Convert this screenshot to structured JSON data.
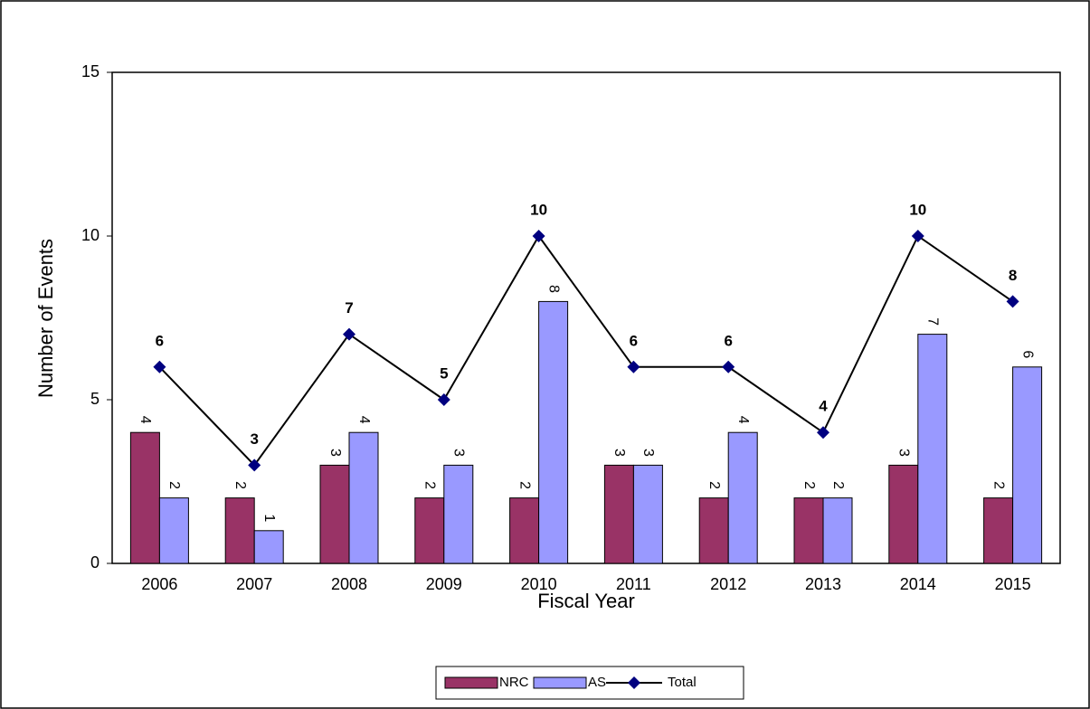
{
  "chart_data": {
    "type": "bar_line",
    "xlabel": "Fiscal Year",
    "ylabel": "Number of Events",
    "categories": [
      "2006",
      "2007",
      "2008",
      "2009",
      "2010",
      "2011",
      "2012",
      "2013",
      "2014",
      "2015"
    ],
    "series": [
      {
        "name": "NRC",
        "type": "bar",
        "color": "#993366",
        "values": [
          4,
          2,
          3,
          2,
          2,
          3,
          2,
          2,
          3,
          2
        ]
      },
      {
        "name": "AS",
        "type": "bar",
        "color": "#9999ff",
        "values": [
          2,
          1,
          4,
          3,
          8,
          3,
          4,
          2,
          7,
          6
        ]
      },
      {
        "name": "Total",
        "type": "line",
        "color": "#000080",
        "line_color": "#000000",
        "values": [
          6,
          3,
          7,
          5,
          10,
          6,
          6,
          4,
          10,
          8
        ]
      }
    ],
    "ylim": [
      0,
      15
    ],
    "yticks": [
      0,
      5,
      10,
      15
    ],
    "grid": false,
    "legend": "bottom"
  }
}
